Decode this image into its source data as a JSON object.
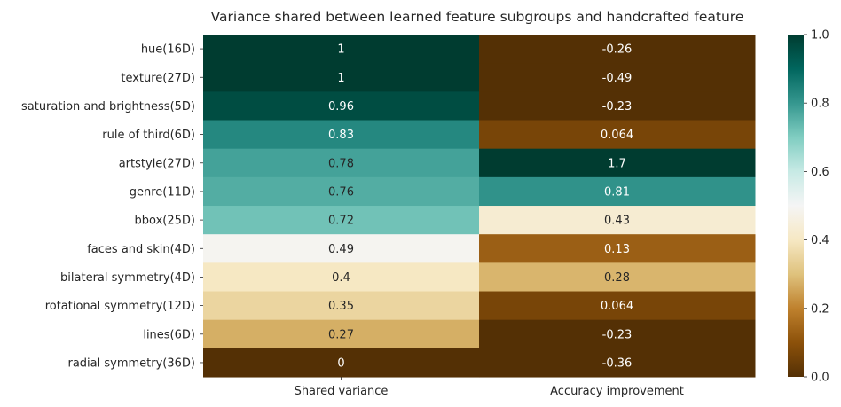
{
  "chart_data": {
    "type": "heatmap",
    "title": "Variance shared between learned feature subgroups and handcrafted feature",
    "xlabel": "",
    "ylabel": "",
    "columns": [
      "Shared variance",
      "Accuracy improvement"
    ],
    "rows": [
      "hue(16D)",
      "texture(27D)",
      "saturation and brightness(5D)",
      "rule of third(6D)",
      "artstyle(27D)",
      "genre(11D)",
      "bbox(25D)",
      "faces and skin(4D)",
      "bilateral symmetry(4D)",
      "rotational symmetry(12D)",
      "lines(6D)",
      "radial symmetry(36D)"
    ],
    "values": [
      [
        1,
        -0.26
      ],
      [
        1,
        -0.49
      ],
      [
        0.96,
        -0.23
      ],
      [
        0.83,
        0.064
      ],
      [
        0.78,
        1.7
      ],
      [
        0.76,
        0.81
      ],
      [
        0.72,
        0.43
      ],
      [
        0.49,
        0.13
      ],
      [
        0.4,
        0.28
      ],
      [
        0.35,
        0.064
      ],
      [
        0.27,
        -0.23
      ],
      [
        0,
        -0.36
      ]
    ],
    "labels": [
      [
        "1",
        "-0.26"
      ],
      [
        "1",
        "-0.49"
      ],
      [
        "0.96",
        "-0.23"
      ],
      [
        "0.83",
        "0.064"
      ],
      [
        "0.78",
        "1.7"
      ],
      [
        "0.76",
        "0.81"
      ],
      [
        "0.72",
        "0.43"
      ],
      [
        "0.49",
        "0.13"
      ],
      [
        "0.4",
        "0.28"
      ],
      [
        "0.35",
        "0.064"
      ],
      [
        "0.27",
        "-0.23"
      ],
      [
        "0",
        "-0.36"
      ]
    ],
    "colormap": "BrBG",
    "color_range": [
      0,
      1
    ],
    "colorbar_ticks": [
      "0.0",
      "0.2",
      "0.4",
      "0.6",
      "0.8",
      "1.0"
    ],
    "colorbar_tick_values": [
      0,
      0.2,
      0.4,
      0.6,
      0.8,
      1.0
    ]
  }
}
